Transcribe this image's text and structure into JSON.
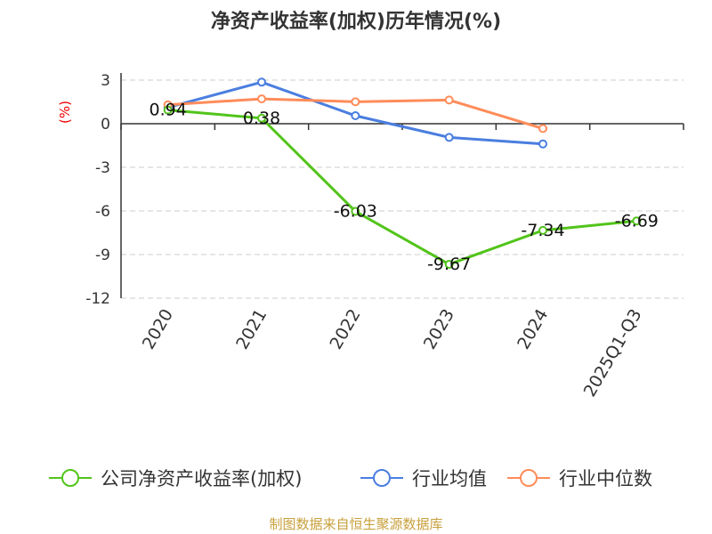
{
  "chart_data": {
    "type": "line",
    "title": "净资产收益率(加权)历年情况(%)",
    "ylabel": "(%)",
    "categories": [
      "2020",
      "2021",
      "2022",
      "2023",
      "2024",
      "2025Q1-Q3"
    ],
    "ylim": [
      -12,
      3
    ],
    "yticks": [
      "3",
      "0",
      "-3",
      "-6",
      "-9",
      "-12"
    ],
    "grid": true,
    "legend_position": "bottom",
    "series": [
      {
        "name": "公司净资产收益率(加权)",
        "color": "#52c41a",
        "values": [
          0.94,
          0.38,
          -6.03,
          -9.67,
          -7.34,
          -6.69
        ],
        "labels": [
          "0.94",
          "0.38",
          "-6.03",
          "-9.67",
          "-7.34",
          "-6.69"
        ]
      },
      {
        "name": "行业均值",
        "color": "#4a7ee0",
        "values": [
          1.12,
          2.86,
          0.55,
          -0.94,
          -1.39,
          null
        ]
      },
      {
        "name": "行业中位数",
        "color": "#ff8c5a",
        "values": [
          1.3,
          1.71,
          1.51,
          1.63,
          -0.33,
          null
        ]
      }
    ]
  },
  "source": "制图数据来自恒生聚源数据库"
}
